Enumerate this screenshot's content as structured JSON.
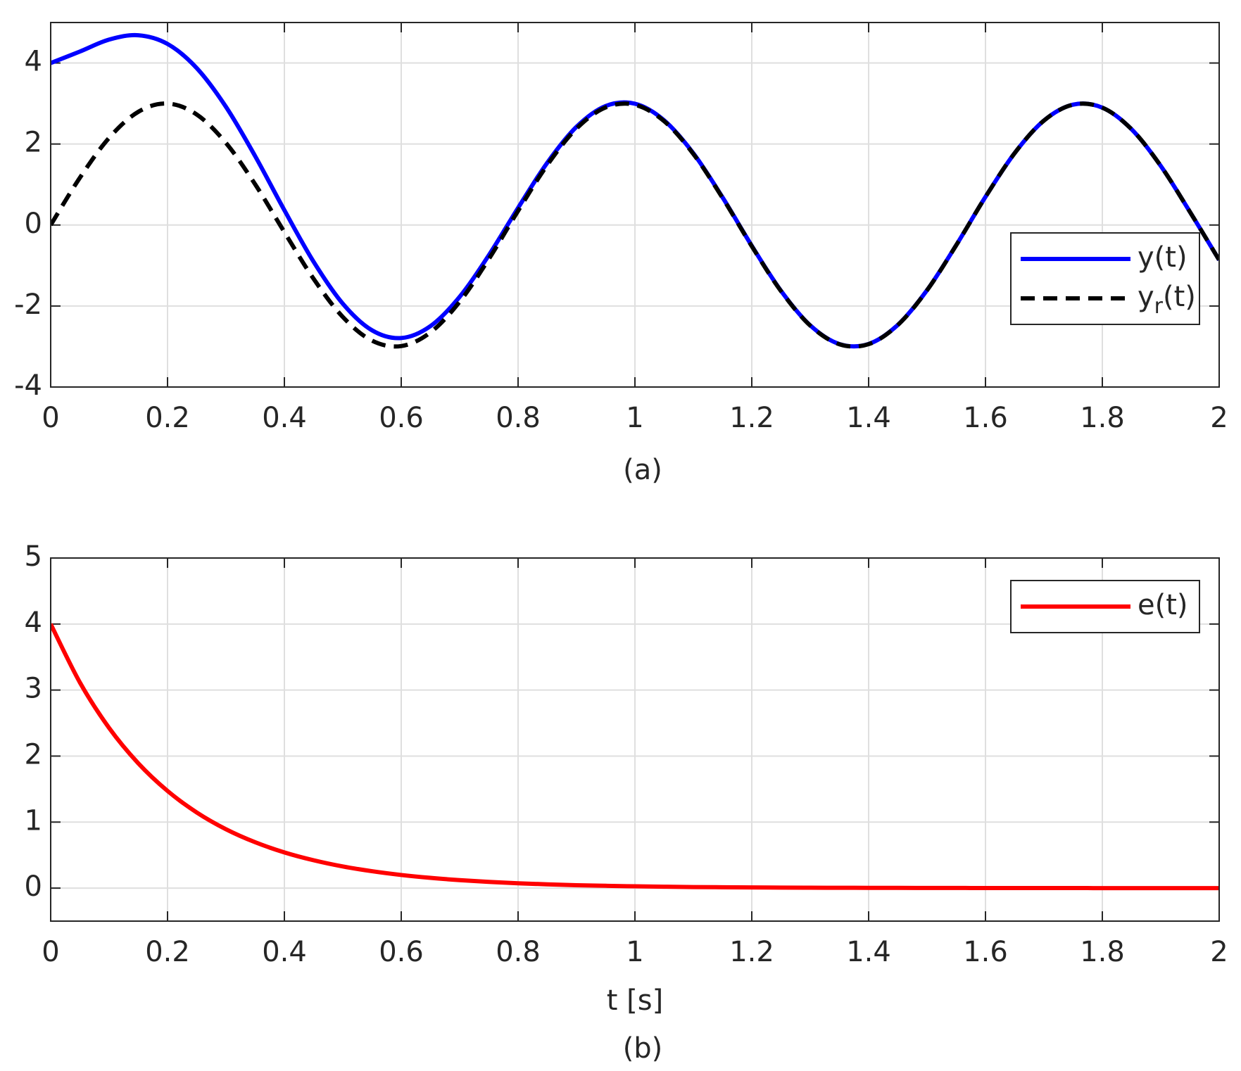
{
  "chart_data": [
    {
      "type": "line",
      "caption": "(a)",
      "x": [
        0,
        0.05,
        0.1,
        0.15,
        0.2,
        0.25,
        0.3,
        0.35,
        0.4,
        0.45,
        0.5,
        0.55,
        0.6,
        0.65,
        0.7,
        0.75,
        0.8,
        0.85,
        0.9,
        0.95,
        1,
        1.05,
        1.1,
        1.15,
        1.2,
        1.25,
        1.3,
        1.35,
        1.4,
        1.45,
        1.5,
        1.55,
        1.6,
        1.65,
        1.7,
        1.75,
        1.8,
        1.85,
        1.9,
        1.95,
        2
      ],
      "series": [
        {
          "name": "y(t)",
          "color": "#0000ff",
          "style": "solid",
          "values": [
            4,
            4.283,
            4.578,
            4.686,
            4.471,
            3.874,
            2.918,
            1.7,
            0.366,
            -0.906,
            -1.942,
            -2.599,
            -2.79,
            -2.496,
            -1.773,
            -0.744,
            0.423,
            1.539,
            2.425,
            2.939,
            2.995,
            2.585,
            1.771,
            0.682,
            -0.513,
            -1.624,
            -2.477,
            -2.939,
            -2.937,
            -2.465,
            -1.608,
            -0.495,
            0.695,
            1.777,
            2.579,
            2.973,
            2.897,
            2.365,
            1.459,
            0.323,
            -0.864
          ]
        },
        {
          "name": "y_r(t)",
          "color": "#000000",
          "style": "dash",
          "values": [
            0,
            1.168,
            2.152,
            2.796,
            2.999,
            2.728,
            2.026,
            1.005,
            -0.175,
            -1.328,
            -2.27,
            -2.855,
            -2.989,
            -2.651,
            -1.894,
            -0.838,
            0.35,
            1.482,
            2.381,
            2.904,
            2.968,
            2.564,
            1.755,
            0.669,
            -0.523,
            -1.632,
            -2.483,
            -2.944,
            -2.941,
            -2.468,
            -1.61,
            -0.497,
            0.694,
            1.776,
            2.578,
            2.972,
            2.897,
            2.365,
            1.459,
            0.323,
            -0.864
          ]
        }
      ],
      "xlim": [
        0,
        2
      ],
      "ylim": [
        -4,
        5
      ],
      "xticks": [
        0,
        0.2,
        0.4,
        0.6,
        0.8,
        1,
        1.2,
        1.4,
        1.6,
        1.8,
        2
      ],
      "yticks": [
        -4,
        -2,
        0,
        2,
        4
      ],
      "grid": true,
      "legend": "east"
    },
    {
      "type": "line",
      "caption": "(b)",
      "xlabel": "t [s]",
      "x": [
        0,
        0.05,
        0.1,
        0.15,
        0.2,
        0.25,
        0.3,
        0.35,
        0.4,
        0.45,
        0.5,
        0.55,
        0.6,
        0.65,
        0.7,
        0.75,
        0.8,
        0.85,
        0.9,
        0.95,
        1,
        1.05,
        1.1,
        1.15,
        1.2,
        1.25,
        1.3,
        1.35,
        1.4,
        1.45,
        1.5,
        1.55,
        1.6,
        1.65,
        1.7,
        1.75,
        1.8,
        1.85,
        1.9,
        1.95,
        2
      ],
      "series": [
        {
          "name": "e(t)",
          "color": "#ff0000",
          "style": "solid",
          "values": [
            4,
            3.115,
            2.426,
            1.89,
            1.472,
            1.146,
            0.892,
            0.695,
            0.541,
            0.422,
            0.328,
            0.256,
            0.199,
            0.155,
            0.121,
            0.094,
            0.073,
            0.057,
            0.044,
            0.035,
            0.027,
            0.021,
            0.016,
            0.013,
            0.01,
            0.008,
            0.006,
            0.005,
            0.004,
            0.003,
            0.002,
            0.002,
            0.001,
            0.001,
            0.001,
            0.001,
            0,
            0,
            0,
            0,
            0
          ]
        }
      ],
      "xlim": [
        0,
        2
      ],
      "ylim": [
        -0.5,
        5
      ],
      "xticks": [
        0,
        0.2,
        0.4,
        0.6,
        0.8,
        1,
        1.2,
        1.4,
        1.6,
        1.8,
        2
      ],
      "yticks": [
        0,
        1,
        2,
        3,
        4,
        5
      ],
      "grid": true,
      "legend": "northeast"
    }
  ]
}
